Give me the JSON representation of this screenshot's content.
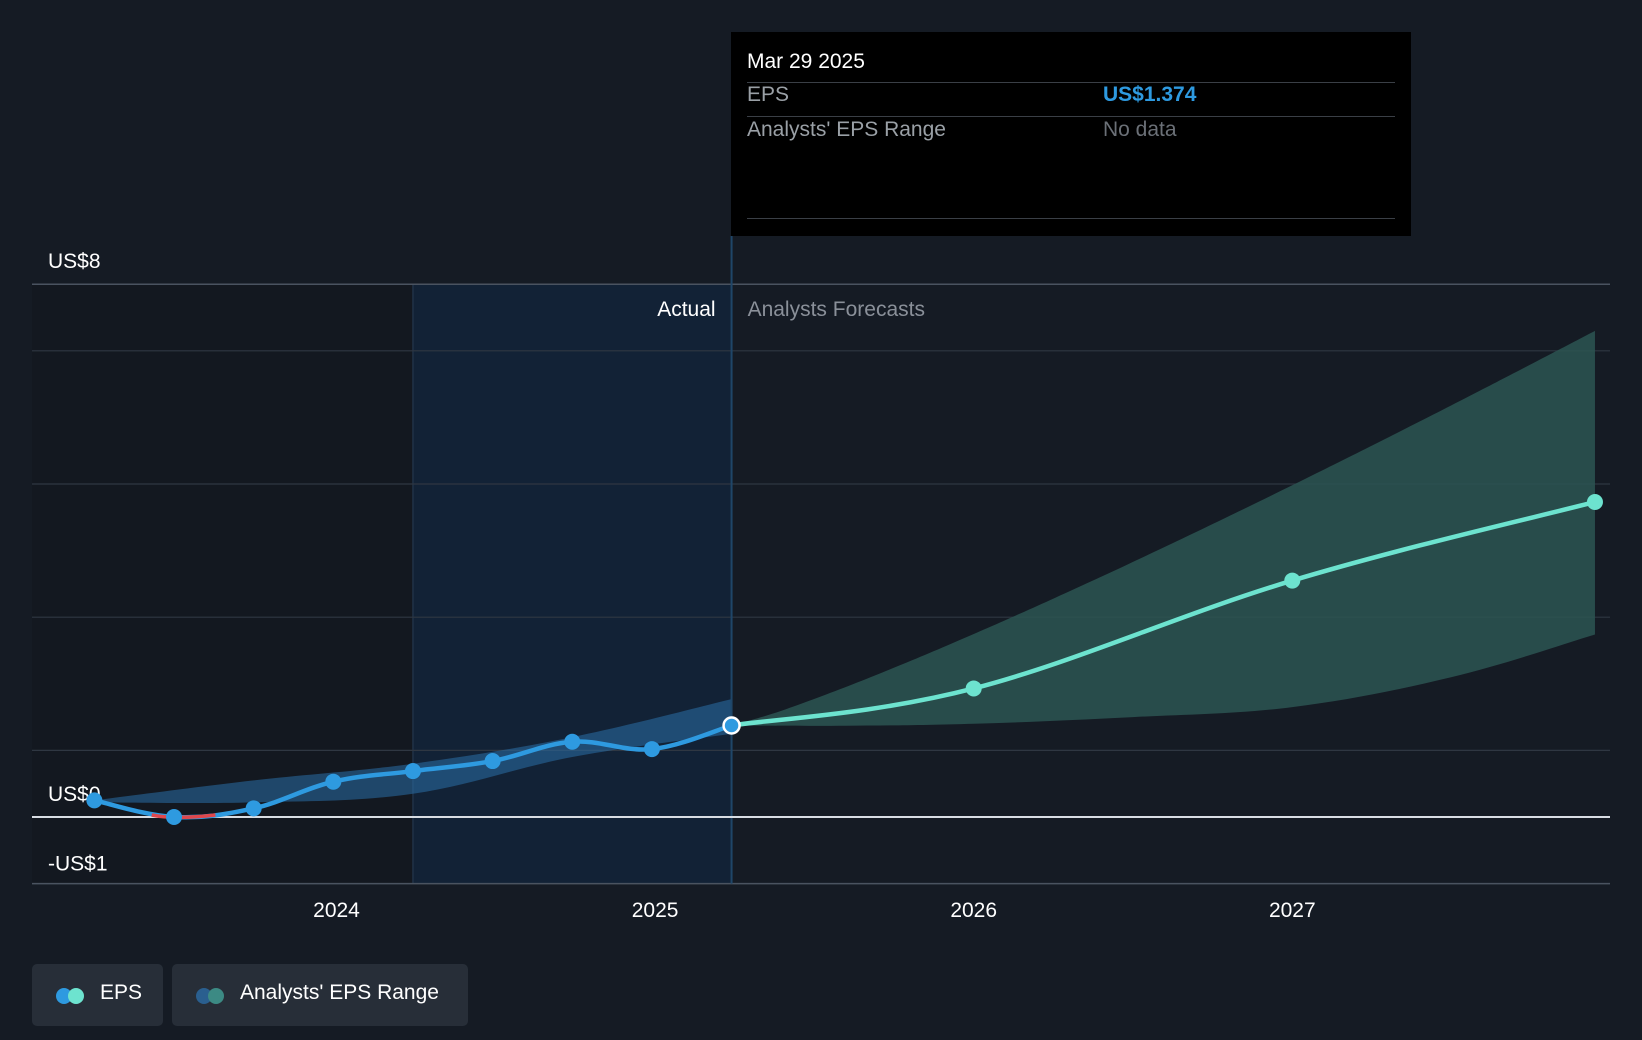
{
  "tooltip": {
    "date": "Mar 29 2025",
    "rows": [
      {
        "label": "EPS",
        "value": "US$1.374"
      },
      {
        "label": "Analysts' EPS Range",
        "value": "No data"
      }
    ]
  },
  "legend": [
    {
      "label": "EPS"
    },
    {
      "label": "Analysts' EPS Range"
    }
  ],
  "colors": {
    "background": "#151b24",
    "actual_line": "#2e9ae0",
    "forecast_line": "#6de3cf",
    "negative_segment": "#e0474c",
    "range_band_actual": "#2a6fa8",
    "range_band_forecast": "#2c5552",
    "highlight_region": "#122236",
    "grid": "#2f3742"
  },
  "chart_data": {
    "type": "line",
    "y_axis": {
      "min": -1,
      "max": 8,
      "tick_labels": [
        {
          "value": 8,
          "label": "US$8"
        },
        {
          "value": 0,
          "label": "US$0"
        },
        {
          "value": -1,
          "label": "-US$1"
        }
      ]
    },
    "x_axis": {
      "min": 2023.2,
      "max": 2027.95,
      "tick_labels": [
        {
          "value": 2024,
          "label": "2024"
        },
        {
          "value": 2025,
          "label": "2025"
        },
        {
          "value": 2026,
          "label": "2026"
        },
        {
          "value": 2027,
          "label": "2027"
        }
      ]
    },
    "grid": true,
    "divider_x": 2025.24,
    "highlight_start_x": 2024.24,
    "section_labels": {
      "actual": "Actual",
      "forecast": "Analysts Forecasts"
    },
    "series": [
      {
        "name": "EPS",
        "kind": "actual",
        "points": [
          {
            "x": 2023.24,
            "y": 0.25
          },
          {
            "x": 2023.49,
            "y": 0.0
          },
          {
            "x": 2023.74,
            "y": 0.13
          },
          {
            "x": 2023.99,
            "y": 0.53
          },
          {
            "x": 2024.24,
            "y": 0.69
          },
          {
            "x": 2024.49,
            "y": 0.84
          },
          {
            "x": 2024.74,
            "y": 1.13
          },
          {
            "x": 2024.99,
            "y": 1.02
          },
          {
            "x": 2025.24,
            "y": 1.374
          }
        ]
      },
      {
        "name": "EPS",
        "kind": "forecast",
        "points": [
          {
            "x": 2025.24,
            "y": 1.374
          },
          {
            "x": 2026.0,
            "y": 1.93
          },
          {
            "x": 2027.0,
            "y": 3.55
          },
          {
            "x": 2027.95,
            "y": 4.73
          }
        ]
      }
    ],
    "range_band_actual": {
      "x": [
        2023.24,
        2023.74,
        2024.24,
        2024.74,
        2025.24
      ],
      "low": [
        0.22,
        0.22,
        0.35,
        0.9,
        1.25
      ],
      "high": [
        0.25,
        0.55,
        0.8,
        1.2,
        1.77
      ]
    },
    "range_band_forecast": {
      "x": [
        2025.24,
        2025.6,
        2026.0,
        2026.5,
        2027.0,
        2027.5,
        2027.95
      ],
      "low": [
        1.374,
        1.37,
        1.4,
        1.5,
        1.65,
        2.1,
        2.74
      ]
    }
  }
}
